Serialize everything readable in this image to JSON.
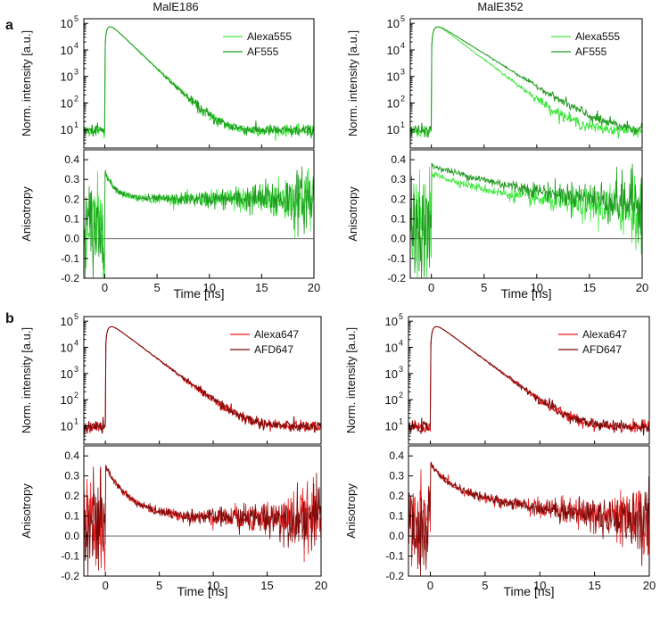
{
  "panel_labels": [
    "a",
    "b"
  ],
  "column_titles": [
    "MalE186",
    "MalE352"
  ],
  "colors": {
    "green_light": "#3ee83e",
    "green_dark": "#1f9a1f",
    "red_light": "#e81818",
    "red_dark": "#7a0a0a",
    "zero_line": "#555555"
  },
  "chart_data": [
    {
      "id": "a-MalE186",
      "panel": "a",
      "column_title": "MalE186",
      "type": "line",
      "top": {
        "ylabel": "Norm. intensity [a.u.]",
        "yscale": "log",
        "ylim": [
          2,
          150000
        ],
        "yticks": [
          {
            "v": 10,
            "exp": "1"
          },
          {
            "v": 100,
            "exp": "2"
          },
          {
            "v": 1000,
            "exp": "3"
          },
          {
            "v": 10000,
            "exp": "4"
          },
          {
            "v": 100000,
            "exp": "5"
          }
        ],
        "tick_base": "10",
        "legend": [
          "Alexa555",
          "AF555"
        ],
        "legend_position": "top-right",
        "series": [
          {
            "name": "Alexa555",
            "color": "#3ee83e",
            "t_rise": 0,
            "peak": 90000,
            "tau": 1.15,
            "background": 9,
            "offset": 0
          },
          {
            "name": "AF555",
            "color": "#1f9a1f",
            "t_rise": 0,
            "peak": 90000,
            "tau": 1.15,
            "background": 9,
            "offset": 0
          }
        ]
      },
      "bottom": {
        "ylabel": "Anisotropy",
        "ylim": [
          -0.2,
          0.45
        ],
        "yticks": [
          "-0.2",
          "-0.1",
          "0.0",
          "0.1",
          "0.2",
          "0.3",
          "0.4"
        ],
        "xlabel": "Time [ns]",
        "xlim": [
          -2,
          20
        ],
        "xticks": [
          "0",
          "5",
          "10",
          "15",
          "20"
        ],
        "series": [
          {
            "name": "Alexa555",
            "color": "#3ee83e",
            "r0": 0.34,
            "rinf": 0.2,
            "tau": 1.1,
            "slope": 0
          },
          {
            "name": "AF555",
            "color": "#1f9a1f",
            "r0": 0.34,
            "rinf": 0.2,
            "tau": 1.1,
            "slope": 0
          }
        ]
      }
    },
    {
      "id": "a-MalE352",
      "panel": "a",
      "column_title": "MalE352",
      "type": "line",
      "top": {
        "ylabel": "Norm. intensity [a.u.]",
        "yscale": "log",
        "ylim": [
          2,
          150000
        ],
        "yticks": [
          {
            "v": 10,
            "exp": "1"
          },
          {
            "v": 100,
            "exp": "2"
          },
          {
            "v": 1000,
            "exp": "3"
          },
          {
            "v": 10000,
            "exp": "4"
          },
          {
            "v": 100000,
            "exp": "5"
          }
        ],
        "tick_base": "10",
        "legend": [
          "Alexa555",
          "AF555"
        ],
        "legend_position": "top-right",
        "series": [
          {
            "name": "Alexa555",
            "color": "#3ee83e",
            "t_rise": 0,
            "peak": 90000,
            "tau": 1.45,
            "background": 9,
            "offset": 0
          },
          {
            "name": "AF555",
            "color": "#1f9a1f",
            "t_rise": 0,
            "peak": 90000,
            "tau": 1.75,
            "background": 9,
            "offset": 0
          }
        ]
      },
      "bottom": {
        "ylabel": "Anisotropy",
        "ylim": [
          -0.2,
          0.45
        ],
        "yticks": [
          "-0.2",
          "-0.1",
          "0.0",
          "0.1",
          "0.2",
          "0.3",
          "0.4"
        ],
        "xlabel": "Time [ns]",
        "xlim": [
          -2,
          20
        ],
        "xticks": [
          "0",
          "5",
          "10",
          "15",
          "20"
        ],
        "series": [
          {
            "name": "Alexa555",
            "color": "#3ee83e",
            "r0": 0.33,
            "rinf": 0.1,
            "tau": 12,
            "slope": 0
          },
          {
            "name": "AF555",
            "color": "#1f9a1f",
            "r0": 0.37,
            "rinf": 0.1,
            "tau": 16,
            "slope": 0
          }
        ]
      }
    },
    {
      "id": "b-MalE186",
      "panel": "b",
      "column_title": "MalE186",
      "type": "line",
      "top": {
        "ylabel": "Norm. intensity [a.u.]",
        "yscale": "log",
        "ylim": [
          2,
          150000
        ],
        "yticks": [
          {
            "v": 10,
            "exp": "1"
          },
          {
            "v": 100,
            "exp": "2"
          },
          {
            "v": 1000,
            "exp": "3"
          },
          {
            "v": 10000,
            "exp": "4"
          },
          {
            "v": 100000,
            "exp": "5"
          }
        ],
        "tick_base": "10",
        "legend": [
          "Alexa647",
          "AFD647"
        ],
        "legend_position": "top-right",
        "series": [
          {
            "name": "Alexa647",
            "color": "#e81818",
            "t_rise": 0,
            "peak": 75000,
            "tau": 1.4,
            "background": 9,
            "offset": 0
          },
          {
            "name": "AFD647",
            "color": "#7a0a0a",
            "t_rise": 0,
            "peak": 75000,
            "tau": 1.4,
            "background": 9,
            "offset": 0
          }
        ]
      },
      "bottom": {
        "ylabel": "Anisotropy",
        "ylim": [
          -0.2,
          0.45
        ],
        "yticks": [
          "-0.2",
          "-0.1",
          "0.0",
          "0.1",
          "0.2",
          "0.3",
          "0.4"
        ],
        "xlabel": "Time [ns]",
        "xlim": [
          -2,
          20
        ],
        "xticks": [
          "0",
          "5",
          "10",
          "15",
          "20"
        ],
        "series": [
          {
            "name": "Alexa647",
            "color": "#e81818",
            "r0": 0.35,
            "rinf": 0.09,
            "tau": 2.4,
            "slope": 0
          },
          {
            "name": "AFD647",
            "color": "#7a0a0a",
            "r0": 0.35,
            "rinf": 0.09,
            "tau": 2.4,
            "slope": 0
          }
        ]
      }
    },
    {
      "id": "b-MalE352",
      "panel": "b",
      "column_title": "MalE352",
      "type": "line",
      "top": {
        "ylabel": "Norm. intensity [a.u.]",
        "yscale": "log",
        "ylim": [
          2,
          150000
        ],
        "yticks": [
          {
            "v": 10,
            "exp": "1"
          },
          {
            "v": 100,
            "exp": "2"
          },
          {
            "v": 1000,
            "exp": "3"
          },
          {
            "v": 10000,
            "exp": "4"
          },
          {
            "v": 100000,
            "exp": "5"
          }
        ],
        "tick_base": "10",
        "legend": [
          "Alexa647",
          "AFD647"
        ],
        "legend_position": "top-right",
        "series": [
          {
            "name": "Alexa647",
            "color": "#e81818",
            "t_rise": 0,
            "peak": 75000,
            "tau": 1.4,
            "background": 9,
            "offset": 0
          },
          {
            "name": "AFD647",
            "color": "#7a0a0a",
            "t_rise": 0,
            "peak": 75000,
            "tau": 1.4,
            "background": 9,
            "offset": 0
          }
        ]
      },
      "bottom": {
        "ylabel": "Anisotropy",
        "ylim": [
          -0.2,
          0.45
        ],
        "yticks": [
          "-0.2",
          "-0.1",
          "0.0",
          "0.1",
          "0.2",
          "0.3",
          "0.4"
        ],
        "xlabel": "Time [ns]",
        "xlim": [
          -2,
          20
        ],
        "xticks": [
          "0",
          "5",
          "10",
          "15",
          "20"
        ],
        "series": [
          {
            "name": "Alexa647",
            "color": "#e81818",
            "r0": 0.36,
            "rinf": 0.21,
            "tau": 2.2,
            "slope": -0.007
          },
          {
            "name": "AFD647",
            "color": "#7a0a0a",
            "r0": 0.36,
            "rinf": 0.21,
            "tau": 2.2,
            "slope": -0.007
          }
        ]
      }
    }
  ]
}
